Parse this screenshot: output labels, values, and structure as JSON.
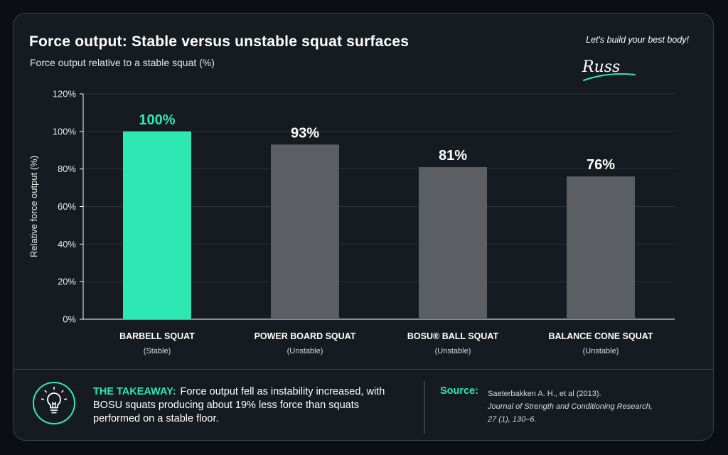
{
  "header": {
    "title": "Force output: Stable versus unstable squat surfaces",
    "subtitle": "Force output relative to a stable squat (%)",
    "brand_tagline": "Let's build your best body!",
    "brand_signature": "Russ"
  },
  "colors": {
    "highlight": "#2ee8b4",
    "bar_default": "#5b5e63",
    "background": "#161b21",
    "border": "#3a4048"
  },
  "chart_data": {
    "type": "bar",
    "categories": [
      "BARBELL SQUAT",
      "POWER BOARD SQUAT",
      "BOSU® BALL SQUAT",
      "BALANCE CONE SQUAT"
    ],
    "category_sublabels": [
      "(Stable)",
      "(Unstable)",
      "(Unstable)",
      "(Unstable)"
    ],
    "values": [
      100,
      93,
      81,
      76
    ],
    "value_labels": [
      "100%",
      "93%",
      "81%",
      "76%"
    ],
    "highlight_index": 0,
    "ylabel": "Relative force output (%)",
    "ylim": [
      0,
      120
    ],
    "yticks": [
      0,
      20,
      40,
      60,
      80,
      100,
      120
    ],
    "ytick_labels": [
      "0%",
      "20%",
      "40%",
      "60%",
      "80%",
      "100%",
      "120%"
    ],
    "grid": true
  },
  "footer": {
    "icon": "lightbulb-icon",
    "takeaway_label": "THE TAKEAWAY:",
    "takeaway_text": "Force output fell as instability increased, with BOSU squats producing about 19% less force than squats performed on a stable floor.",
    "source_label": "Source:",
    "source_authors": "Saeterbakken A. H., et al (2013).",
    "source_journal": "Journal of Strength and Conditioning Research,",
    "source_issue": "27 (1), 130–6."
  }
}
